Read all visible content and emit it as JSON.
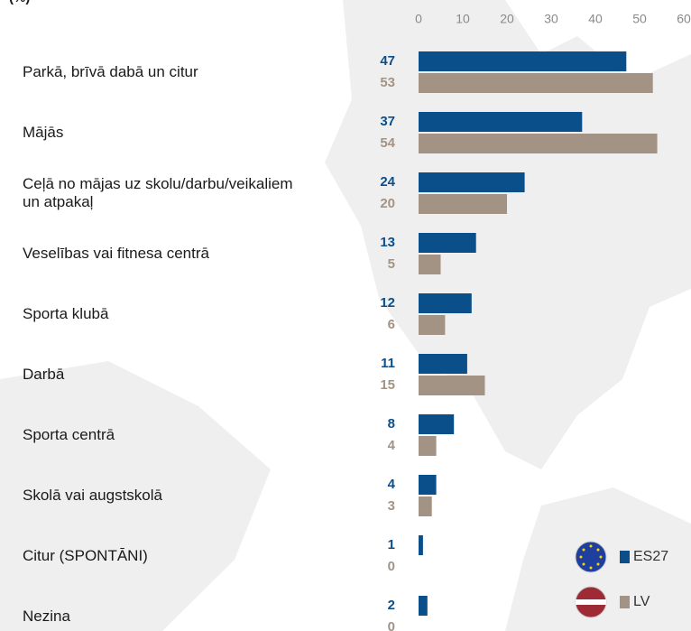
{
  "chart_data": {
    "type": "bar",
    "orientation": "horizontal",
    "title": "(%)",
    "categories": [
      "Parkā, brīvā dabā un citur",
      "Mājās",
      "Ceļā no mājas uz skolu/darbu/veikaliem\nun atpakaļ",
      "Veselības vai fitnesa centrā",
      "Sporta klubā",
      "Darbā",
      "Sporta centrā",
      "Skolā vai augstskolā",
      "Citur (SPONTĀNI)",
      "Nezina"
    ],
    "series": [
      {
        "name": "ES27",
        "color": "#0b4f8a",
        "values": [
          47,
          37,
          24,
          13,
          12,
          11,
          8,
          4,
          1,
          2
        ]
      },
      {
        "name": "LV",
        "color": "#a39384",
        "values": [
          53,
          54,
          20,
          5,
          6,
          15,
          4,
          3,
          0,
          0
        ]
      }
    ],
    "xlim": [
      0,
      60
    ],
    "xticks": [
      0,
      10,
      20,
      30,
      40,
      50,
      60
    ],
    "legend": "bottom-right"
  }
}
